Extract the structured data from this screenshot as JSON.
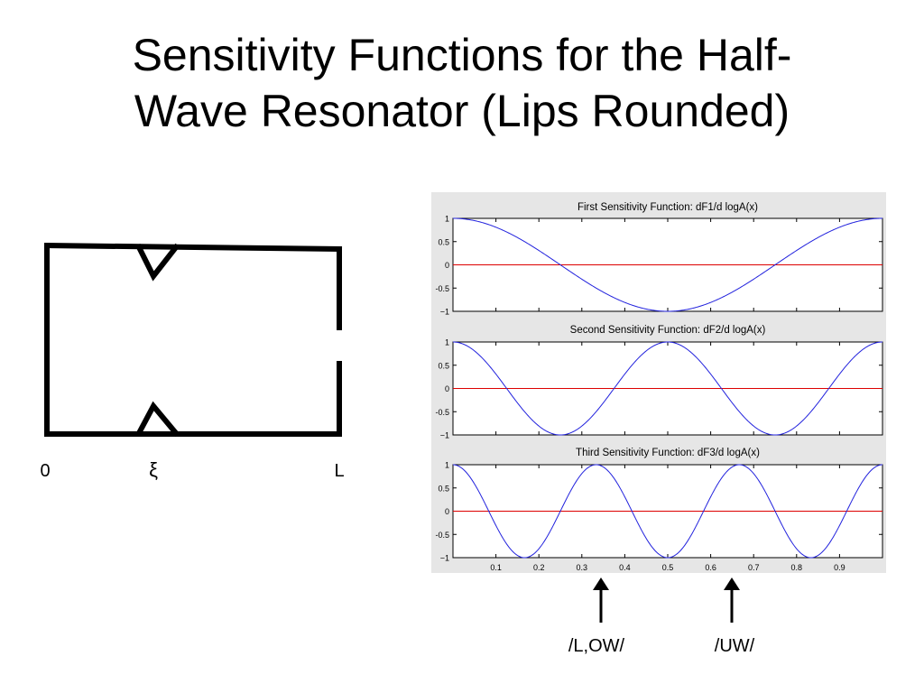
{
  "slide": {
    "title_line1": "Sensitivity Functions for the Half-",
    "title_line2": "Wave Resonator (Lips Rounded)"
  },
  "diagram": {
    "label_start": "0",
    "label_xi": "ξ",
    "label_end": "L"
  },
  "annotations": {
    "arrow_lw_label": "/L,OW/",
    "arrow_uw_label": "/UW/"
  },
  "colors": {
    "curve": "#2222dd",
    "zero_line": "#dd0000",
    "panel_bg": "#e6e6e6",
    "axes_bg": "#ffffff"
  },
  "chart_data": [
    {
      "type": "line",
      "title": "First Sensitivity Function: dF1/d logA(x)",
      "function": "cos(2*pi*1*x)",
      "x": [
        0,
        0.05,
        0.1,
        0.15,
        0.2,
        0.25,
        0.3,
        0.35,
        0.4,
        0.45,
        0.5,
        0.55,
        0.6,
        0.65,
        0.7,
        0.75,
        0.8,
        0.85,
        0.9,
        0.95,
        1.0
      ],
      "y": [
        1,
        0.951,
        0.809,
        0.588,
        0.309,
        0,
        -0.309,
        -0.588,
        -0.809,
        -0.951,
        -1,
        -0.951,
        -0.809,
        -0.588,
        -0.309,
        0,
        0.309,
        0.588,
        0.809,
        0.951,
        1
      ],
      "xlim": [
        0,
        1
      ],
      "ylim": [
        -1,
        1
      ],
      "yticks": [
        "1",
        "0.5",
        "0",
        "-0.5",
        "−1"
      ],
      "reference_line_y": 0
    },
    {
      "type": "line",
      "title": "Second Sensitivity Function: dF2/d logA(x)",
      "function": "cos(2*pi*2*x)",
      "x": [
        0,
        0.05,
        0.1,
        0.15,
        0.2,
        0.25,
        0.3,
        0.35,
        0.4,
        0.45,
        0.5,
        0.55,
        0.6,
        0.65,
        0.7,
        0.75,
        0.8,
        0.85,
        0.9,
        0.95,
        1.0
      ],
      "y": [
        1,
        0.809,
        0.309,
        -0.309,
        -0.809,
        -1,
        -0.809,
        -0.309,
        0.309,
        0.809,
        1,
        0.809,
        0.309,
        -0.309,
        -0.809,
        -1,
        -0.809,
        -0.309,
        0.309,
        0.809,
        1
      ],
      "xlim": [
        0,
        1
      ],
      "ylim": [
        -1,
        1
      ],
      "yticks": [
        "1",
        "0.5",
        "0",
        "-0.5",
        "−1"
      ],
      "reference_line_y": 0
    },
    {
      "type": "line",
      "title": "Third Sensitivity Function: dF3/d logA(x)",
      "function": "cos(2*pi*3*x)",
      "x": [
        0,
        0.05,
        0.1,
        0.15,
        0.2,
        0.25,
        0.3,
        0.35,
        0.4,
        0.45,
        0.5,
        0.55,
        0.6,
        0.65,
        0.7,
        0.75,
        0.8,
        0.85,
        0.9,
        0.95,
        1.0
      ],
      "y": [
        1,
        0.588,
        -0.309,
        -0.951,
        -0.809,
        0,
        0.809,
        0.951,
        0.309,
        -0.588,
        -1,
        -0.588,
        0.309,
        0.951,
        0.809,
        0,
        -0.809,
        -0.951,
        -0.309,
        0.588,
        1
      ],
      "xlim": [
        0,
        1
      ],
      "ylim": [
        -1,
        1
      ],
      "yticks": [
        "1",
        "0.5",
        "0",
        "-0.5",
        "−1"
      ],
      "xticks": [
        "0.1",
        "0.2",
        "0.3",
        "0.4",
        "0.5",
        "0.6",
        "0.7",
        "0.8",
        "0.9"
      ],
      "reference_line_y": 0
    }
  ]
}
